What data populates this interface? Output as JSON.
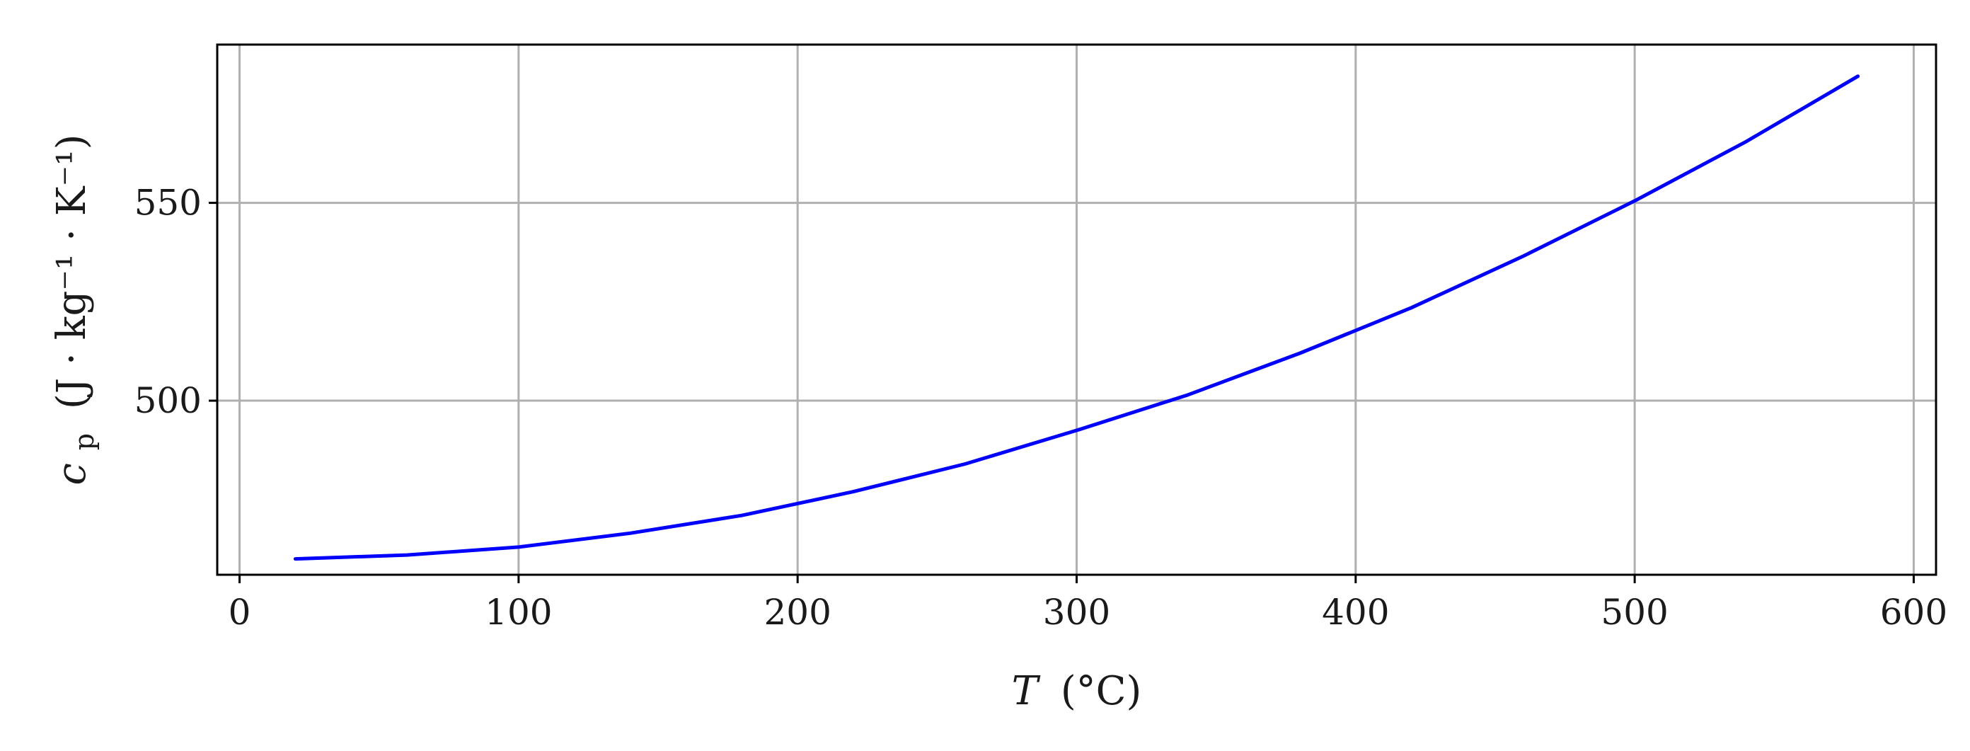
{
  "chart_data": {
    "type": "line",
    "xlabel": "T (°C)",
    "xlabel_var": "T",
    "xlabel_unit": "(°C)",
    "ylabel": "c_p (J · kg⁻¹ · K⁻¹)",
    "ylabel_var": "c",
    "ylabel_sub": "p",
    "ylabel_unit": "(J · kg⁻¹ · K⁻¹)",
    "xlim": [
      -8,
      608
    ],
    "ylim": [
      456,
      590
    ],
    "xticks": [
      0,
      100,
      200,
      300,
      400,
      500,
      600
    ],
    "xtick_labels": [
      "0",
      "100",
      "200",
      "300",
      "400",
      "500",
      "600"
    ],
    "yticks": [
      500,
      550
    ],
    "ytick_labels": [
      "500",
      "550"
    ],
    "grid": true,
    "series": [
      {
        "color": "#0000ff",
        "x": [
          20,
          60,
          100,
          140,
          180,
          220,
          260,
          300,
          340,
          380,
          420,
          460,
          500,
          540,
          580
        ],
        "y": [
          460,
          461,
          463,
          466.5,
          471,
          477,
          484,
          492.5,
          501.5,
          512,
          523.5,
          536.5,
          550.5,
          565.5,
          582
        ]
      }
    ]
  }
}
